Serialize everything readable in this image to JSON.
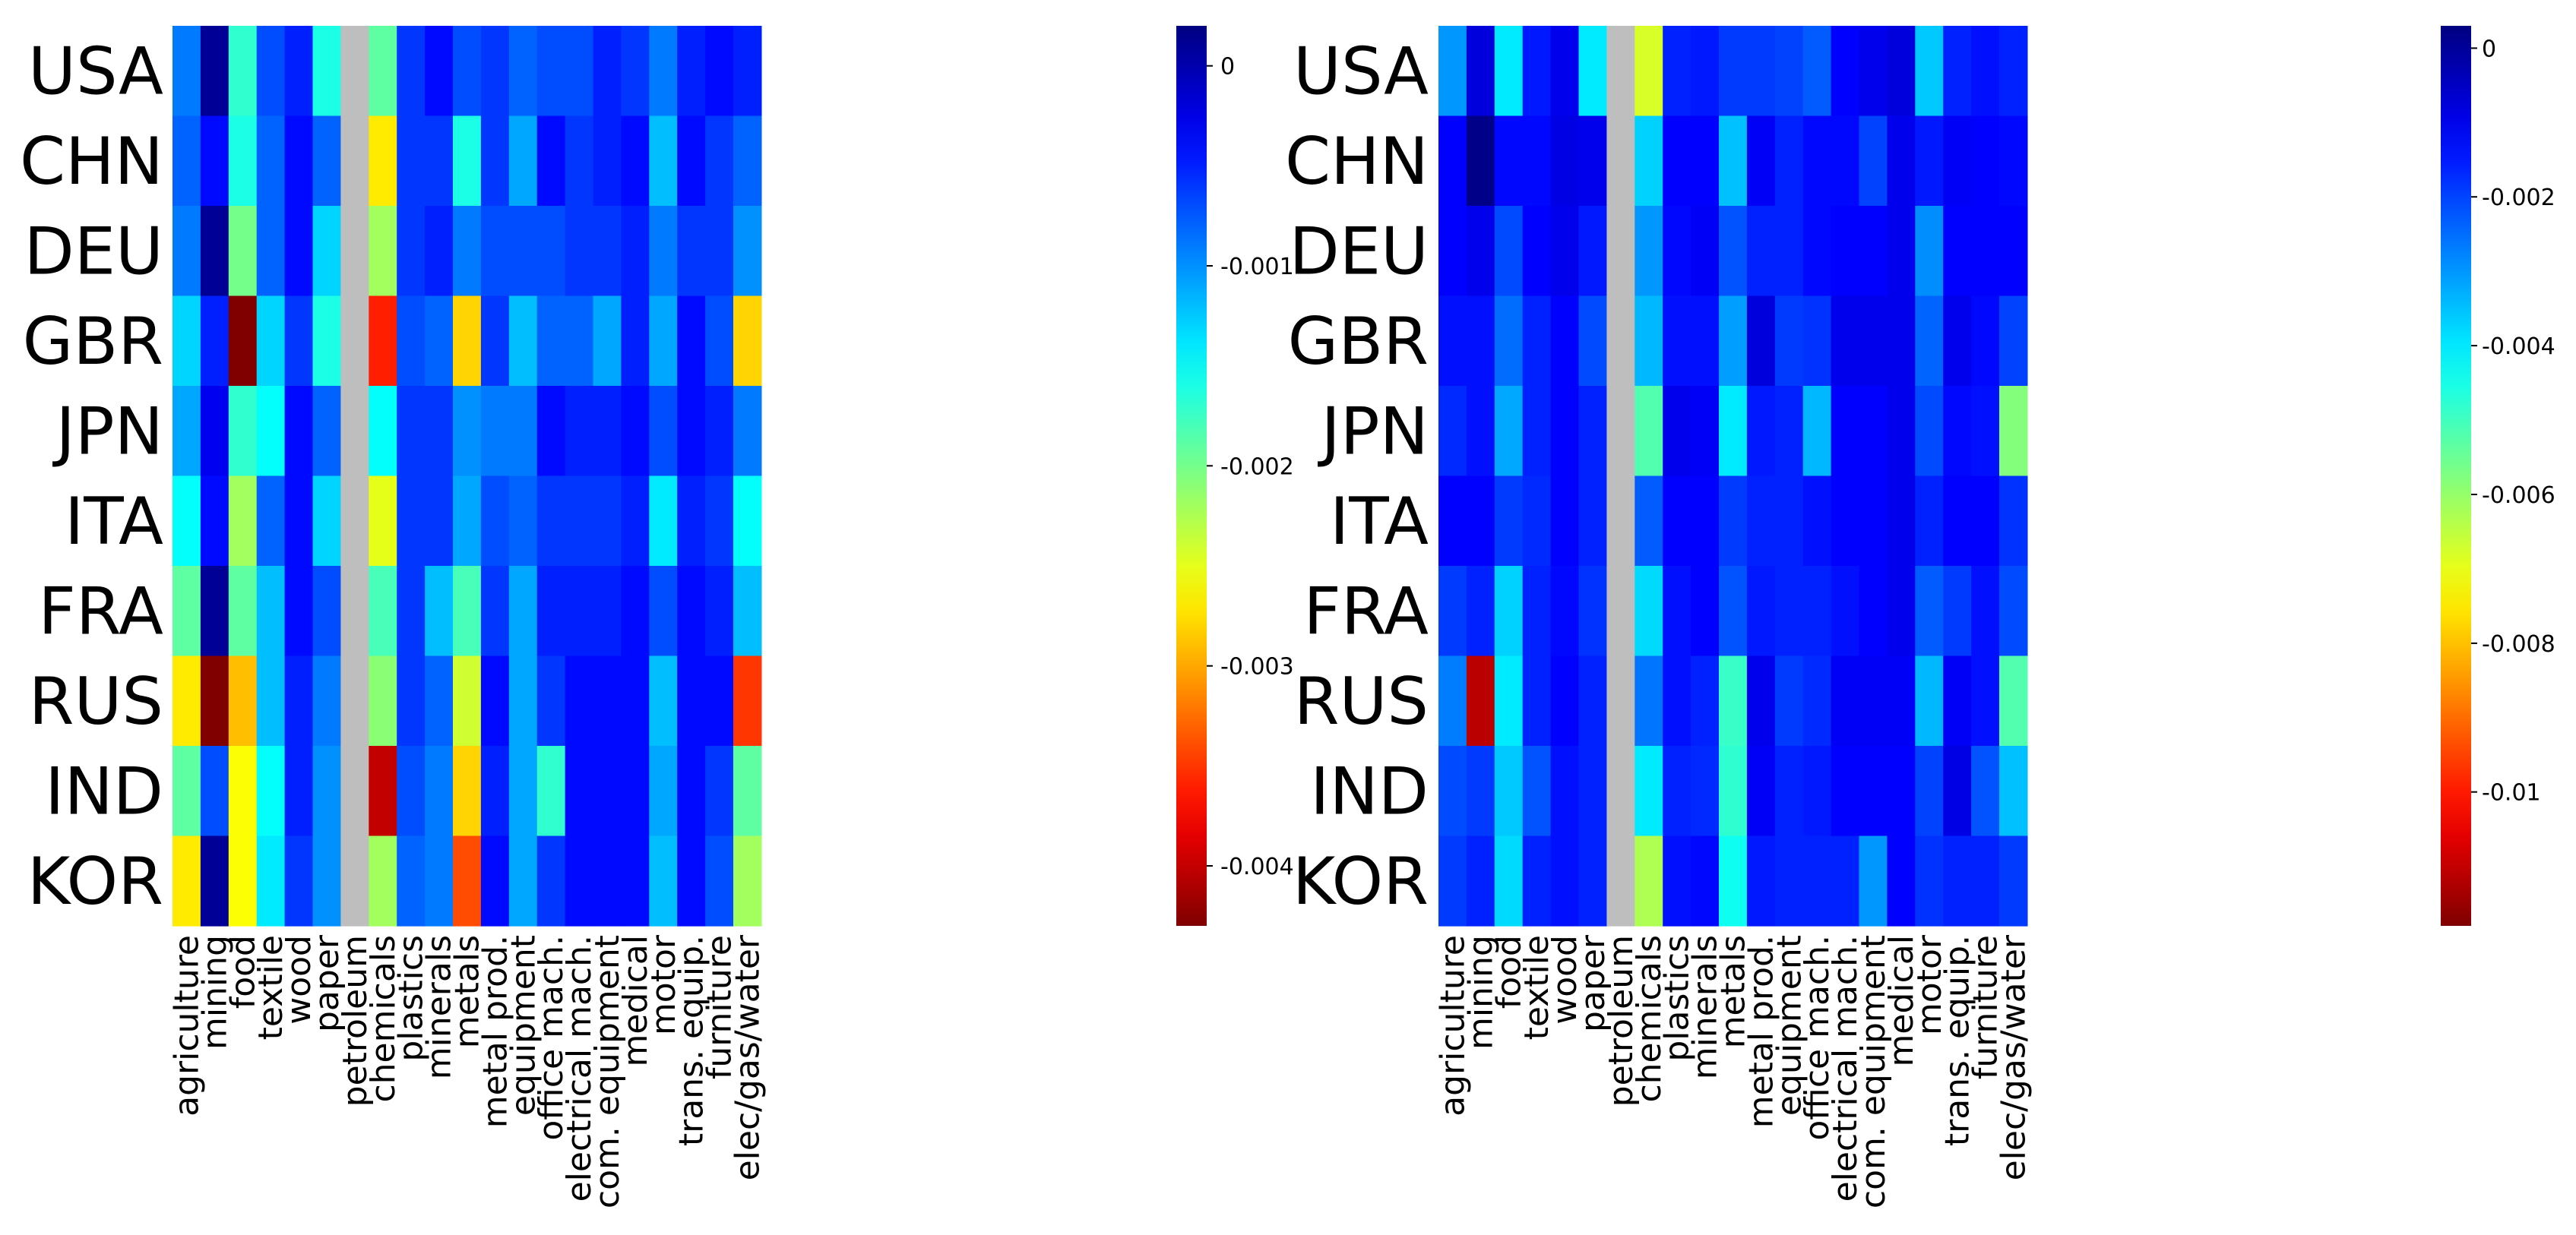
{
  "chart_data": [
    {
      "type": "heatmap",
      "name": "left-heatmap",
      "title": "",
      "rows": [
        "USA",
        "CHN",
        "DEU",
        "GBR",
        "JPN",
        "ITA",
        "FRA",
        "RUS",
        "IND",
        "KOR"
      ],
      "columns": [
        "agriculture",
        "mining",
        "food",
        "textile",
        "wood",
        "paper",
        "petroleum",
        "chemicals",
        "plastics",
        "minerals",
        "metals",
        "metal prod.",
        "equipment",
        "office mach.",
        "electrical mach.",
        "com. equipment",
        "medical",
        "motor",
        "trans. equip.",
        "furniture",
        "elec/gas/water"
      ],
      "missing_column": "petroleum",
      "missing_color": "#bebebe",
      "colorbar": {
        "min": -0.0043,
        "max": 0.0002,
        "ticks": [
          0,
          -0.001,
          -0.002,
          -0.003,
          -0.004
        ],
        "tick_labels": [
          "0",
          "-0.001",
          "-0.002",
          "-0.003",
          "-0.004"
        ]
      },
      "values": [
        [
          -0.0009,
          0.0001,
          -0.0017,
          -0.0007,
          -0.0005,
          -0.0016,
          null,
          -0.0019,
          -0.0006,
          -0.0004,
          -0.0007,
          -0.0006,
          -0.0008,
          -0.0007,
          -0.0007,
          -0.0005,
          -0.0006,
          -0.0009,
          -0.0005,
          -0.0004,
          -0.0005
        ],
        [
          -0.0008,
          -0.0004,
          -0.0016,
          -0.0008,
          -0.0004,
          -0.0008,
          null,
          -0.0027,
          -0.0006,
          -0.0006,
          -0.0016,
          -0.0006,
          -0.0011,
          -0.0004,
          -0.0006,
          -0.0005,
          -0.0004,
          -0.0012,
          -0.0004,
          -0.0006,
          -0.0008
        ],
        [
          -0.0009,
          0.0001,
          -0.002,
          -0.0008,
          -0.0004,
          -0.0013,
          null,
          -0.0022,
          -0.0006,
          -0.0005,
          -0.0009,
          -0.0007,
          -0.0007,
          -0.0007,
          -0.0006,
          -0.0006,
          -0.0005,
          -0.0009,
          -0.0006,
          -0.0006,
          -0.001
        ],
        [
          -0.0013,
          -0.0005,
          -0.0043,
          -0.0013,
          -0.0006,
          -0.0016,
          null,
          -0.0036,
          -0.0007,
          -0.0008,
          -0.0028,
          -0.0006,
          -0.0012,
          -0.0008,
          -0.0008,
          -0.0011,
          -0.0005,
          -0.0011,
          -0.0004,
          -0.0007,
          -0.0028
        ],
        [
          -0.0011,
          -0.0003,
          -0.0017,
          -0.0015,
          -0.0004,
          -0.0008,
          null,
          -0.0015,
          -0.0006,
          -0.0006,
          -0.001,
          -0.0009,
          -0.0009,
          -0.0004,
          -0.0005,
          -0.0005,
          -0.0004,
          -0.0007,
          -0.0004,
          -0.0005,
          -0.0009
        ],
        [
          -0.0015,
          -0.0004,
          -0.0022,
          -0.0008,
          -0.0004,
          -0.0013,
          null,
          -0.0025,
          -0.0006,
          -0.0006,
          -0.0011,
          -0.0007,
          -0.0008,
          -0.0006,
          -0.0006,
          -0.0006,
          -0.0005,
          -0.0014,
          -0.0005,
          -0.0006,
          -0.0015
        ],
        [
          -0.0019,
          0.0001,
          -0.0019,
          -0.0012,
          -0.0004,
          -0.0007,
          null,
          -0.0018,
          -0.0006,
          -0.0012,
          -0.0018,
          -0.0006,
          -0.0011,
          -0.0005,
          -0.0005,
          -0.0005,
          -0.0004,
          -0.0007,
          -0.0004,
          -0.0005,
          -0.0012
        ],
        [
          -0.0027,
          -0.0043,
          -0.0029,
          -0.0012,
          -0.0005,
          -0.0009,
          null,
          -0.0021,
          -0.0006,
          -0.0008,
          -0.0024,
          -0.0004,
          -0.0011,
          -0.0006,
          -0.0004,
          -0.0004,
          -0.0004,
          -0.0012,
          -0.0004,
          -0.0004,
          -0.0035
        ],
        [
          -0.0019,
          -0.0007,
          -0.0026,
          -0.0015,
          -0.0005,
          -0.001,
          null,
          -0.004,
          -0.0007,
          -0.0009,
          -0.0028,
          -0.0005,
          -0.0011,
          -0.0017,
          -0.0004,
          -0.0004,
          -0.0004,
          -0.0011,
          -0.0004,
          -0.0006,
          -0.0019
        ],
        [
          -0.0027,
          0.0001,
          -0.0026,
          -0.0014,
          -0.0006,
          -0.001,
          null,
          -0.0022,
          -0.0008,
          -0.0009,
          -0.0034,
          -0.0004,
          -0.0011,
          -0.0006,
          -0.0004,
          -0.0004,
          -0.0004,
          -0.0012,
          -0.0004,
          -0.0007,
          -0.0022
        ]
      ]
    },
    {
      "type": "heatmap",
      "name": "right-heatmap",
      "title": "",
      "rows": [
        "USA",
        "CHN",
        "DEU",
        "GBR",
        "JPN",
        "ITA",
        "FRA",
        "RUS",
        "IND",
        "KOR"
      ],
      "columns": [
        "agriculture",
        "mining",
        "food",
        "textile",
        "wood",
        "paper",
        "petroleum",
        "chemicals",
        "plastics",
        "minerals",
        "metals",
        "metal prod.",
        "equipment",
        "office mach.",
        "electrical mach.",
        "com. equipment",
        "medical",
        "motor",
        "trans. equip.",
        "furniture",
        "elec/gas/water"
      ],
      "missing_column": "petroleum",
      "missing_color": "#bebebe",
      "colorbar": {
        "min": -0.0118,
        "max": 0.0003,
        "ticks": [
          0,
          -0.002,
          -0.004,
          -0.006,
          -0.008,
          -0.01
        ],
        "tick_labels": [
          "0",
          "-0.002",
          "-0.004",
          "-0.006",
          "-0.008",
          "-0.01"
        ]
      },
      "values": [
        [
          -0.003,
          -0.0008,
          -0.004,
          -0.0015,
          -0.001,
          -0.004,
          null,
          -0.0068,
          -0.0016,
          -0.0015,
          -0.0019,
          -0.0019,
          -0.002,
          -0.0023,
          -0.0012,
          -0.001,
          -0.0008,
          -0.0036,
          -0.0016,
          -0.0014,
          -0.0016
        ],
        [
          -0.0012,
          0.0002,
          -0.0013,
          -0.0013,
          -0.0009,
          -0.001,
          null,
          -0.0037,
          -0.0012,
          -0.0012,
          -0.0035,
          -0.0011,
          -0.0016,
          -0.0013,
          -0.0013,
          -0.002,
          -0.001,
          -0.0015,
          -0.0011,
          -0.0012,
          -0.0013
        ],
        [
          -0.0012,
          -0.001,
          -0.0021,
          -0.0012,
          -0.001,
          -0.0015,
          null,
          -0.003,
          -0.0013,
          -0.0011,
          -0.0022,
          -0.0016,
          -0.0016,
          -0.0013,
          -0.0012,
          -0.0012,
          -0.001,
          -0.0029,
          -0.0012,
          -0.0012,
          -0.0012
        ],
        [
          -0.0014,
          -0.0014,
          -0.0025,
          -0.0016,
          -0.0012,
          -0.0021,
          null,
          -0.0034,
          -0.0014,
          -0.0014,
          -0.0031,
          -0.0008,
          -0.0019,
          -0.0018,
          -0.001,
          -0.001,
          -0.001,
          -0.0024,
          -0.001,
          -0.0013,
          -0.002
        ],
        [
          -0.0017,
          -0.0014,
          -0.0032,
          -0.0016,
          -0.0012,
          -0.0016,
          null,
          -0.0052,
          -0.001,
          -0.0011,
          -0.004,
          -0.0015,
          -0.0016,
          -0.0034,
          -0.0012,
          -0.0012,
          -0.001,
          -0.0021,
          -0.0013,
          -0.0014,
          -0.0058
        ],
        [
          -0.0012,
          -0.0012,
          -0.0019,
          -0.0017,
          -0.0012,
          -0.0016,
          null,
          -0.0023,
          -0.0012,
          -0.0012,
          -0.0019,
          -0.0016,
          -0.0016,
          -0.0014,
          -0.0012,
          -0.0012,
          -0.001,
          -0.0016,
          -0.0012,
          -0.0012,
          -0.0018
        ],
        [
          -0.0019,
          -0.0016,
          -0.0037,
          -0.0016,
          -0.0013,
          -0.0018,
          null,
          -0.0038,
          -0.0014,
          -0.0012,
          -0.0022,
          -0.0015,
          -0.0016,
          -0.0016,
          -0.0014,
          -0.0012,
          -0.001,
          -0.0023,
          -0.0019,
          -0.0014,
          -0.0021
        ],
        [
          -0.0027,
          -0.0111,
          -0.004,
          -0.0016,
          -0.0012,
          -0.0016,
          null,
          -0.0026,
          -0.0014,
          -0.0016,
          -0.0049,
          -0.001,
          -0.0019,
          -0.0017,
          -0.0011,
          -0.0011,
          -0.0011,
          -0.0034,
          -0.0011,
          -0.0014,
          -0.0052
        ],
        [
          -0.0021,
          -0.0019,
          -0.0036,
          -0.0022,
          -0.0014,
          -0.0016,
          null,
          -0.004,
          -0.0016,
          -0.0017,
          -0.0048,
          -0.0011,
          -0.0016,
          -0.0015,
          -0.0012,
          -0.0012,
          -0.0012,
          -0.002,
          -0.0009,
          -0.0022,
          -0.0035
        ],
        [
          -0.0019,
          -0.0016,
          -0.0038,
          -0.0016,
          -0.0014,
          -0.0016,
          null,
          -0.0063,
          -0.0014,
          -0.0013,
          -0.0044,
          -0.0015,
          -0.0016,
          -0.0016,
          -0.0016,
          -0.003,
          -0.0012,
          -0.0018,
          -0.0016,
          -0.0016,
          -0.0019
        ]
      ]
    }
  ]
}
